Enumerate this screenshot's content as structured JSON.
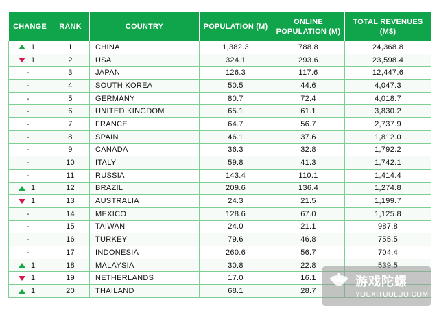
{
  "headers": {
    "change": "CHANGE",
    "rank": "RANK",
    "country": "COUNTRY",
    "population": "POPULATION (M)",
    "online_population": "ONLINE POPULATION (M)",
    "total_revenues": "TOTAL REVENUES (M$)"
  },
  "rows": [
    {
      "change": "1",
      "dir": "up",
      "rank": "1",
      "country": "CHINA",
      "population": "1,382.3",
      "online": "788.8",
      "revenues": "24,368.8"
    },
    {
      "change": "1",
      "dir": "down",
      "rank": "2",
      "country": "USA",
      "population": "324.1",
      "online": "293.6",
      "revenues": "23,598.4"
    },
    {
      "change": "-",
      "dir": "none",
      "rank": "3",
      "country": "JAPAN",
      "population": "126.3",
      "online": "117.6",
      "revenues": "12,447.6"
    },
    {
      "change": "-",
      "dir": "none",
      "rank": "4",
      "country": "SOUTH KOREA",
      "population": "50.5",
      "online": "44.6",
      "revenues": "4,047.3"
    },
    {
      "change": "-",
      "dir": "none",
      "rank": "5",
      "country": "GERMANY",
      "population": "80.7",
      "online": "72.4",
      "revenues": "4,018.7"
    },
    {
      "change": "-",
      "dir": "none",
      "rank": "6",
      "country": "UNITED KINGDOM",
      "population": "65.1",
      "online": "61.1",
      "revenues": "3,830.2"
    },
    {
      "change": "-",
      "dir": "none",
      "rank": "7",
      "country": "FRANCE",
      "population": "64.7",
      "online": "56.7",
      "revenues": "2,737.9"
    },
    {
      "change": "-",
      "dir": "none",
      "rank": "8",
      "country": "SPAIN",
      "population": "46.1",
      "online": "37.6",
      "revenues": "1,812.0"
    },
    {
      "change": "-",
      "dir": "none",
      "rank": "9",
      "country": "CANADA",
      "population": "36.3",
      "online": "32.8",
      "revenues": "1,792.2"
    },
    {
      "change": "-",
      "dir": "none",
      "rank": "10",
      "country": "ITALY",
      "population": "59.8",
      "online": "41.3",
      "revenues": "1,742.1"
    },
    {
      "change": "-",
      "dir": "none",
      "rank": "11",
      "country": "RUSSIA",
      "population": "143.4",
      "online": "110.1",
      "revenues": "1,414.4"
    },
    {
      "change": "1",
      "dir": "up",
      "rank": "12",
      "country": "BRAZIL",
      "population": "209.6",
      "online": "136.4",
      "revenues": "1,274.8"
    },
    {
      "change": "1",
      "dir": "down",
      "rank": "13",
      "country": "AUSTRALIA",
      "population": "24.3",
      "online": "21.5",
      "revenues": "1,199.7"
    },
    {
      "change": "-",
      "dir": "none",
      "rank": "14",
      "country": "MEXICO",
      "population": "128.6",
      "online": "67.0",
      "revenues": "1,125.8"
    },
    {
      "change": "-",
      "dir": "none",
      "rank": "15",
      "country": "TAIWAN",
      "population": "24.0",
      "online": "21.1",
      "revenues": "987.8"
    },
    {
      "change": "-",
      "dir": "none",
      "rank": "16",
      "country": "TURKEY",
      "population": "79.6",
      "online": "46.8",
      "revenues": "755.5"
    },
    {
      "change": "-",
      "dir": "none",
      "rank": "17",
      "country": "INDONESIA",
      "population": "260.6",
      "online": "56.7",
      "revenues": "704.4"
    },
    {
      "change": "1",
      "dir": "up",
      "rank": "18",
      "country": "MALAYSIA",
      "population": "30.8",
      "online": "22.8",
      "revenues": "539.5"
    },
    {
      "change": "1",
      "dir": "down",
      "rank": "19",
      "country": "NETHERLANDS",
      "population": "17.0",
      "online": "16.1",
      "revenues": ""
    },
    {
      "change": "1",
      "dir": "up",
      "rank": "20",
      "country": "THAILAND",
      "population": "68.1",
      "online": "28.7",
      "revenues": ""
    }
  ],
  "colors": {
    "header_bg": "#10a54a",
    "up": "#17a847",
    "down": "#d3184a",
    "grid": "#7fcf95"
  },
  "watermark": {
    "title": "游戏陀螺",
    "url": "YOUXITUOLUO.COM"
  }
}
